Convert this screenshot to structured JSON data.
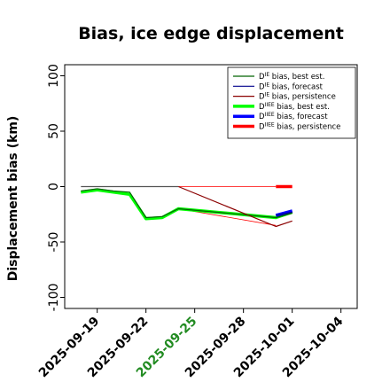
{
  "chart_data": {
    "type": "line",
    "title": "Bias, ice edge displacement",
    "xlabel": "",
    "ylabel": "Displacement bias (km)",
    "xlim": [
      "2025-09-17",
      "2025-10-05"
    ],
    "ylim": [
      -110,
      110
    ],
    "x_ticks": [
      "2025-09-19",
      "2025-09-22",
      "2025-09-25",
      "2025-09-28",
      "2025-10-01",
      "2025-10-04"
    ],
    "x_tick_colors": [
      "#000000",
      "#000000",
      "#228b22",
      "#000000",
      "#000000",
      "#000000"
    ],
    "y_ticks": [
      -100,
      -50,
      0,
      50,
      100
    ],
    "grid": false,
    "legend_position": "top-right",
    "series": [
      {
        "name_parts": [
          "D",
          "IE",
          " bias, best est."
        ],
        "color": "#006400",
        "width": 1.2,
        "points": [
          [
            "2025-09-18",
            -4
          ],
          [
            "2025-09-19",
            -2
          ],
          [
            "2025-09-20",
            -4
          ],
          [
            "2025-09-21",
            -5
          ],
          [
            "2025-09-22",
            -28
          ],
          [
            "2025-09-23",
            -27
          ],
          [
            "2025-09-24",
            -20
          ],
          [
            "2025-09-30",
            -28
          ],
          [
            "2025-10-01",
            -24
          ]
        ]
      },
      {
        "name_parts": [
          "D",
          "IE",
          " bias, forecast"
        ],
        "color": "#00008b",
        "width": 1.2,
        "points": [
          [
            "2025-09-30",
            -26
          ],
          [
            "2025-10-01",
            -23
          ]
        ]
      },
      {
        "name_parts": [
          "D",
          "IE",
          " bias, persistence"
        ],
        "color": "#8b0000",
        "width": 1.2,
        "points": [
          [
            "2025-09-24",
            0
          ],
          [
            "2025-09-30",
            -36
          ],
          [
            "2025-10-01",
            -31
          ]
        ]
      },
      {
        "name_parts": [
          "D",
          "IIEE",
          " bias, best est."
        ],
        "color": "#00ff00",
        "width": 3.5,
        "points": [
          [
            "2025-09-18",
            -5
          ],
          [
            "2025-09-19",
            -3
          ],
          [
            "2025-09-20",
            -5
          ],
          [
            "2025-09-21",
            -7
          ],
          [
            "2025-09-22",
            -29
          ],
          [
            "2025-09-23",
            -28
          ],
          [
            "2025-09-24",
            -20
          ],
          [
            "2025-09-30",
            -28
          ],
          [
            "2025-10-01",
            -23
          ]
        ]
      },
      {
        "name_parts": [
          "D",
          "IIEE",
          " bias, forecast"
        ],
        "color": "#0000ff",
        "width": 3.5,
        "points": [
          [
            "2025-09-30",
            -26
          ],
          [
            "2025-10-01",
            -22
          ]
        ]
      },
      {
        "name_parts": [
          "D",
          "IIEE",
          " bias, persistence"
        ],
        "color": "#ff0000",
        "width": 3.5,
        "points": [
          [
            "2025-09-30",
            0
          ],
          [
            "2025-10-01",
            0
          ]
        ]
      }
    ],
    "reference_lines": [
      {
        "color": "#555555",
        "width": 1.2,
        "points": [
          [
            "2025-09-18",
            0
          ],
          [
            "2025-09-24",
            0
          ]
        ]
      },
      {
        "color": "#ff0000",
        "width": 0.8,
        "points": [
          [
            "2025-09-24",
            0
          ],
          [
            "2025-09-30",
            0
          ]
        ]
      },
      {
        "color": "#ff0000",
        "width": 0.8,
        "points": [
          [
            "2025-09-24",
            -20
          ],
          [
            "2025-09-30",
            -35
          ]
        ]
      }
    ]
  }
}
